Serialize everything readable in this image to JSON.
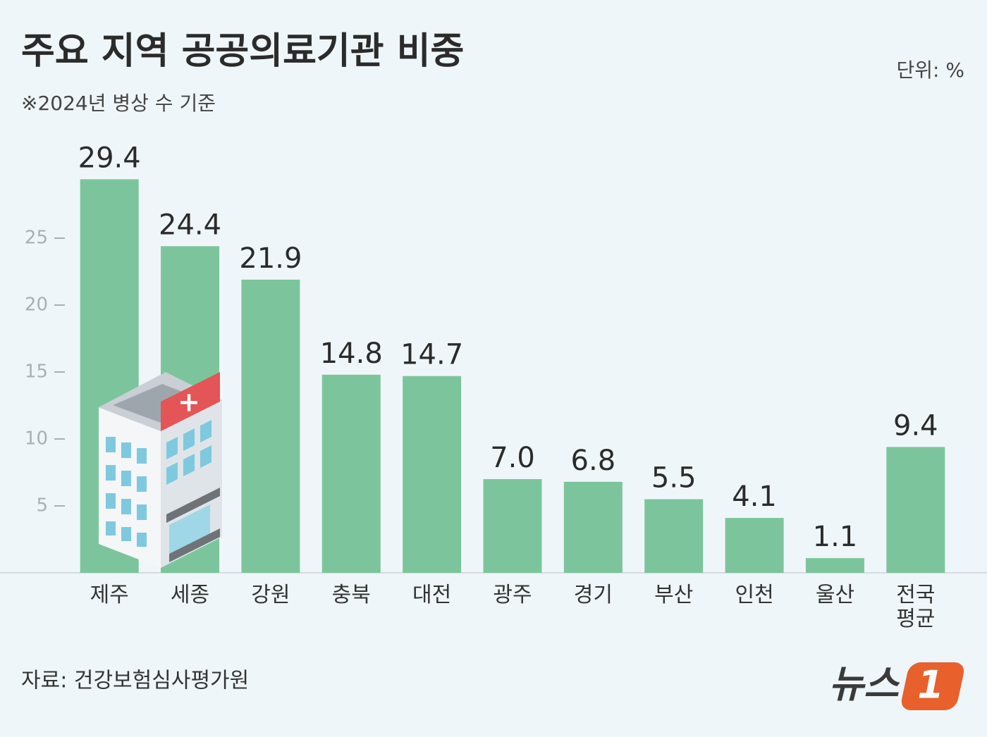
{
  "chart_data": {
    "type": "bar",
    "title": "주요 지역 공공의료기관 비중",
    "subtitle": "※2024년 병상 수 기준",
    "unit": "단위: %",
    "source": "자료: 건강보험심사평가원",
    "logo": {
      "text": "뉴스",
      "badge": "1"
    },
    "categories": [
      "제주",
      "세종",
      "강원",
      "충북",
      "대전",
      "광주",
      "경기",
      "부산",
      "인천",
      "울산",
      "전국\n평균"
    ],
    "values": [
      29.4,
      24.4,
      21.9,
      14.8,
      14.7,
      7.0,
      6.8,
      5.5,
      4.1,
      1.1,
      9.4
    ],
    "value_labels": [
      "29.4",
      "24.4",
      "21.9",
      "14.8",
      "14.7",
      "7.0",
      "6.8",
      "5.5",
      "4.1",
      "1.1",
      "9.4"
    ],
    "color": "#7cc59c",
    "ylim": [
      0,
      30
    ],
    "yticks": [
      5,
      10,
      15,
      20,
      25
    ]
  }
}
